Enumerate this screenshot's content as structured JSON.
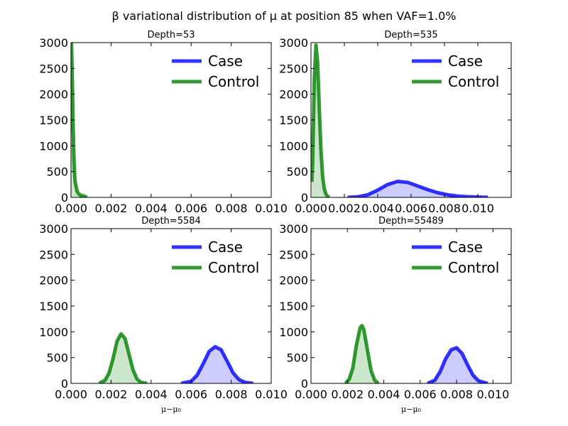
{
  "figure": {
    "title": "β variational distribution of μ at position 85 when VAF=1.0%",
    "xlabel": "μ−μ₀"
  },
  "colors": {
    "case": "#0000ff",
    "control": "#008000"
  },
  "chart_data": [
    {
      "type": "area",
      "title": "Depth=53",
      "xlim": [
        0,
        0.01
      ],
      "ylim": [
        0,
        3000
      ],
      "xticks": [
        "0.000",
        "0.002",
        "0.004",
        "0.006",
        "0.008",
        "0.010"
      ],
      "yticks": [
        "0",
        "500",
        "1000",
        "1500",
        "2000",
        "2500",
        "3000"
      ],
      "xlabel": "",
      "legend": {
        "position": "top-right",
        "entries": [
          "Case",
          "Control"
        ]
      },
      "series": [
        {
          "name": "Case",
          "x": [],
          "y": []
        },
        {
          "name": "Control",
          "x": [
            0.0,
            2e-05,
            5e-05,
            0.0001,
            0.00015,
            0.0002,
            0.0003,
            0.0004,
            0.0005,
            0.0006,
            0.0008
          ],
          "y": [
            3000,
            3000,
            2600,
            1500,
            700,
            320,
            120,
            60,
            40,
            30,
            0
          ]
        }
      ]
    },
    {
      "type": "area",
      "title": "Depth=535",
      "xlim": [
        0,
        0.012
      ],
      "ylim": [
        0,
        3000
      ],
      "xticks": [
        "0.000",
        "0.002",
        "0.004",
        "0.006",
        "0.008",
        "0.010"
      ],
      "yticks": [
        "0",
        "500",
        "1000",
        "1500",
        "2000",
        "2500",
        "3000"
      ],
      "xlabel": "",
      "legend": {
        "position": "top-right",
        "entries": [
          "Case",
          "Control"
        ]
      },
      "series": [
        {
          "name": "Case",
          "x": [
            0.0022,
            0.0028,
            0.0034,
            0.004,
            0.0046,
            0.0052,
            0.0058,
            0.0064,
            0.007,
            0.0076,
            0.0082,
            0.0088,
            0.0094,
            0.01,
            0.0106
          ],
          "y": [
            0,
            10,
            50,
            140,
            250,
            310,
            290,
            220,
            150,
            90,
            50,
            25,
            12,
            5,
            0
          ]
        },
        {
          "name": "Control",
          "x": [
            5e-05,
            0.0001,
            0.0002,
            0.0003,
            0.0004,
            0.0005,
            0.0006,
            0.0007,
            0.0008,
            0.0009,
            0.001,
            0.0011
          ],
          "y": [
            300,
            700,
            2300,
            2950,
            2600,
            1700,
            900,
            400,
            160,
            60,
            20,
            0
          ]
        }
      ]
    },
    {
      "type": "area",
      "title": "Depth=5584",
      "xlim": [
        0,
        0.01
      ],
      "ylim": [
        0,
        3000
      ],
      "xticks": [
        "0.000",
        "0.002",
        "0.004",
        "0.006",
        "0.008",
        "0.010"
      ],
      "yticks": [
        "0",
        "500",
        "1000",
        "1500",
        "2000",
        "2500",
        "3000"
      ],
      "xlabel": "μ−μ₀",
      "legend": {
        "position": "top-right",
        "entries": [
          "Case",
          "Control"
        ]
      },
      "series": [
        {
          "name": "Case",
          "x": [
            0.0055,
            0.006,
            0.0063,
            0.0066,
            0.0069,
            0.0072,
            0.0075,
            0.0078,
            0.0081,
            0.0084,
            0.0087,
            0.0091
          ],
          "y": [
            0,
            40,
            160,
            380,
            620,
            710,
            650,
            430,
            200,
            70,
            20,
            0
          ]
        },
        {
          "name": "Control",
          "x": [
            0.0014,
            0.0017,
            0.0019,
            0.0021,
            0.0023,
            0.0025,
            0.0027,
            0.0029,
            0.0031,
            0.0033,
            0.0035,
            0.0038
          ],
          "y": [
            0,
            60,
            200,
            480,
            820,
            960,
            870,
            560,
            260,
            80,
            20,
            0
          ]
        }
      ]
    },
    {
      "type": "area",
      "title": "Depth=55489",
      "xlim": [
        0,
        0.011
      ],
      "ylim": [
        0,
        3000
      ],
      "xticks": [
        "0.000",
        "0.002",
        "0.004",
        "0.006",
        "0.008",
        "0.010"
      ],
      "yticks": [
        "0",
        "500",
        "1000",
        "1500",
        "2000",
        "2500",
        "3000"
      ],
      "xlabel": "μ−μ₀",
      "legend": {
        "position": "top-right",
        "entries": [
          "Case",
          "Control"
        ]
      },
      "series": [
        {
          "name": "Case",
          "x": [
            0.0064,
            0.0068,
            0.0071,
            0.0074,
            0.0077,
            0.008,
            0.0083,
            0.0086,
            0.0089,
            0.0092,
            0.0097
          ],
          "y": [
            0,
            60,
            230,
            480,
            650,
            690,
            580,
            360,
            160,
            50,
            0
          ]
        },
        {
          "name": "Control",
          "x": [
            0.0019,
            0.0021,
            0.0023,
            0.0025,
            0.0027,
            0.0028,
            0.0029,
            0.0031,
            0.0033,
            0.0035,
            0.0037
          ],
          "y": [
            0,
            80,
            300,
            750,
            1080,
            1120,
            1050,
            650,
            250,
            60,
            0
          ]
        }
      ]
    }
  ]
}
